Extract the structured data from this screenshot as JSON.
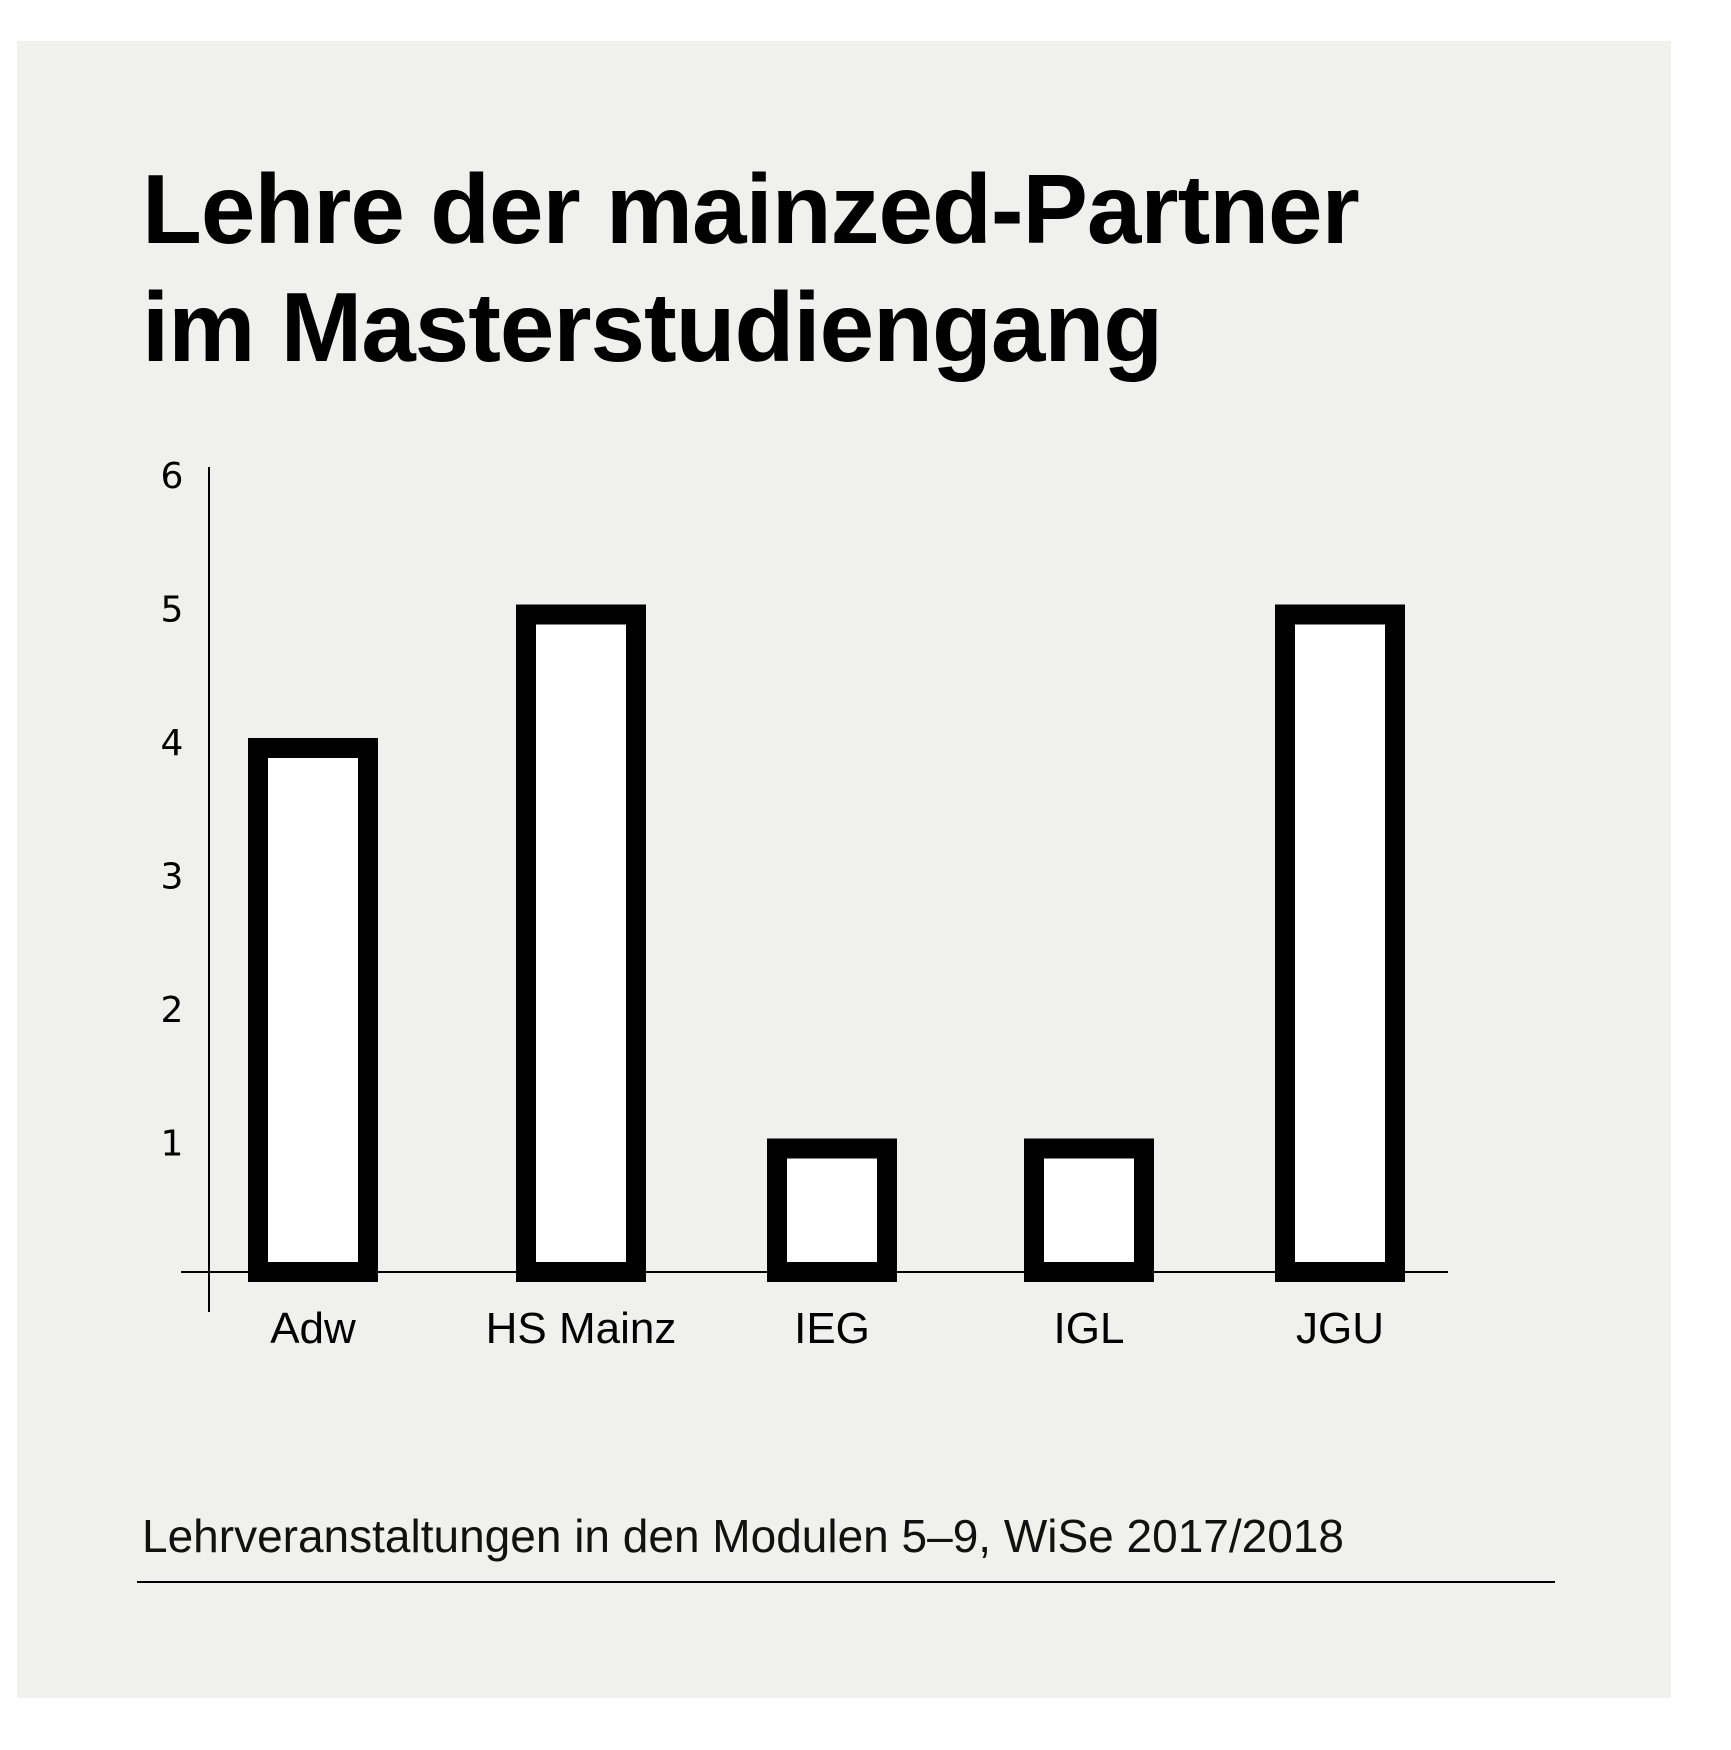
{
  "title_lines": [
    "Lehre der mainzed-Partner",
    "im Masterstudiengang"
  ],
  "caption": "Lehrveranstaltungen in den Modulen 5–9, WiSe 2017/2018",
  "colors": {
    "panel_background": "#f0f1ee",
    "bar_fill": "#ffffff",
    "bar_stroke": "#000000",
    "text": "#000000"
  },
  "chart_data": {
    "type": "bar",
    "title": "Lehre der mainzed-Partner im Masterstudiengang",
    "subtitle": "Lehrveranstaltungen in den Modulen 5–9, WiSe 2017/2018",
    "xlabel": "",
    "ylabel": "",
    "categories": [
      "Adw",
      "HS Mainz",
      "IEG",
      "IGL",
      "JGU"
    ],
    "values": [
      4,
      5,
      1,
      1,
      5
    ],
    "ylim": [
      0,
      6
    ],
    "yticks": [
      "1",
      "2",
      "3",
      "4",
      "5",
      "6"
    ],
    "grid": false,
    "legend": "none"
  }
}
